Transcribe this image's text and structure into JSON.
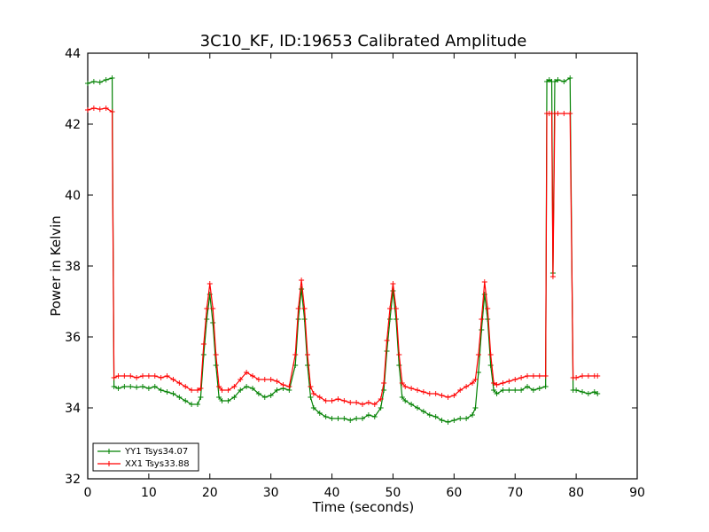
{
  "chart_data": {
    "type": "line",
    "title": "3C10_KF, ID:19653 Calibrated Amplitude",
    "xlabel": "Time (seconds)",
    "ylabel": "Power in Kelvin",
    "xlim": [
      0,
      90
    ],
    "ylim": [
      32,
      44
    ],
    "x_ticks": [
      0,
      10,
      20,
      30,
      40,
      50,
      60,
      70,
      80,
      90
    ],
    "y_ticks": [
      32,
      34,
      36,
      38,
      40,
      42,
      44
    ],
    "x_tick_labels": [
      "0",
      "10",
      "20",
      "30",
      "40",
      "50",
      "60",
      "70",
      "80",
      "90"
    ],
    "y_tick_labels": [
      "32",
      "34",
      "36",
      "38",
      "40",
      "42",
      "44"
    ],
    "grid": false,
    "legend_position": "bottom-left",
    "series": [
      {
        "name": "YY1 Tsys34.07",
        "color": "#008000",
        "marker": "+",
        "points": [
          [
            0,
            43.15
          ],
          [
            1,
            43.2
          ],
          [
            2,
            43.18
          ],
          [
            3,
            43.25
          ],
          [
            4,
            43.3
          ],
          [
            4.3,
            34.6
          ],
          [
            5,
            34.55
          ],
          [
            6,
            34.6
          ],
          [
            7,
            34.6
          ],
          [
            8,
            34.58
          ],
          [
            9,
            34.6
          ],
          [
            10,
            34.55
          ],
          [
            11,
            34.6
          ],
          [
            12,
            34.5
          ],
          [
            13,
            34.45
          ],
          [
            14,
            34.4
          ],
          [
            15,
            34.3
          ],
          [
            16,
            34.2
          ],
          [
            17,
            34.1
          ],
          [
            18,
            34.1
          ],
          [
            18.5,
            34.3
          ],
          [
            19,
            35.5
          ],
          [
            19.5,
            36.5
          ],
          [
            20,
            37.2
          ],
          [
            20.5,
            36.4
          ],
          [
            21,
            35.2
          ],
          [
            21.5,
            34.3
          ],
          [
            22,
            34.2
          ],
          [
            23,
            34.2
          ],
          [
            24,
            34.3
          ],
          [
            25,
            34.5
          ],
          [
            26,
            34.6
          ],
          [
            27,
            34.55
          ],
          [
            28,
            34.4
          ],
          [
            29,
            34.3
          ],
          [
            30,
            34.35
          ],
          [
            31,
            34.5
          ],
          [
            32,
            34.55
          ],
          [
            33,
            34.5
          ],
          [
            34,
            35.2
          ],
          [
            34.5,
            36.5
          ],
          [
            35,
            37.35
          ],
          [
            35.5,
            36.5
          ],
          [
            36,
            35.2
          ],
          [
            36.5,
            34.3
          ],
          [
            37,
            34.0
          ],
          [
            38,
            33.85
          ],
          [
            39,
            33.75
          ],
          [
            40,
            33.7
          ],
          [
            41,
            33.7
          ],
          [
            42,
            33.7
          ],
          [
            43,
            33.65
          ],
          [
            44,
            33.7
          ],
          [
            45,
            33.7
          ],
          [
            46,
            33.8
          ],
          [
            47,
            33.75
          ],
          [
            48,
            34.0
          ],
          [
            48.5,
            34.5
          ],
          [
            49,
            35.6
          ],
          [
            49.5,
            36.5
          ],
          [
            50,
            37.3
          ],
          [
            50.5,
            36.5
          ],
          [
            51,
            35.2
          ],
          [
            51.5,
            34.3
          ],
          [
            52,
            34.2
          ],
          [
            53,
            34.1
          ],
          [
            54,
            34.0
          ],
          [
            55,
            33.9
          ],
          [
            56,
            33.8
          ],
          [
            57,
            33.75
          ],
          [
            58,
            33.65
          ],
          [
            59,
            33.6
          ],
          [
            60,
            33.65
          ],
          [
            61,
            33.7
          ],
          [
            62,
            33.7
          ],
          [
            63,
            33.8
          ],
          [
            63.5,
            34.0
          ],
          [
            64,
            35.0
          ],
          [
            64.5,
            36.2
          ],
          [
            65,
            37.2
          ],
          [
            65.5,
            36.5
          ],
          [
            66,
            35.2
          ],
          [
            66.5,
            34.5
          ],
          [
            67,
            34.4
          ],
          [
            68,
            34.5
          ],
          [
            69,
            34.5
          ],
          [
            70,
            34.5
          ],
          [
            71,
            34.5
          ],
          [
            72,
            34.6
          ],
          [
            73,
            34.5
          ],
          [
            74,
            34.55
          ],
          [
            75,
            34.6
          ],
          [
            75.2,
            43.2
          ],
          [
            75.6,
            43.25
          ],
          [
            76,
            43.2
          ],
          [
            76.2,
            37.8
          ],
          [
            76.5,
            43.2
          ],
          [
            77,
            43.25
          ],
          [
            78,
            43.2
          ],
          [
            79,
            43.3
          ],
          [
            79.5,
            34.5
          ],
          [
            80,
            34.5
          ],
          [
            81,
            34.45
          ],
          [
            82,
            34.4
          ],
          [
            83,
            34.45
          ],
          [
            83.5,
            34.4
          ]
        ]
      },
      {
        "name": "XX1 Tsys33.88",
        "color": "#ff0000",
        "marker": "+",
        "points": [
          [
            0,
            42.4
          ],
          [
            1,
            42.45
          ],
          [
            2,
            42.42
          ],
          [
            3,
            42.45
          ],
          [
            4,
            42.35
          ],
          [
            4.3,
            34.85
          ],
          [
            5,
            34.9
          ],
          [
            6,
            34.9
          ],
          [
            7,
            34.9
          ],
          [
            8,
            34.85
          ],
          [
            9,
            34.9
          ],
          [
            10,
            34.9
          ],
          [
            11,
            34.9
          ],
          [
            12,
            34.85
          ],
          [
            13,
            34.9
          ],
          [
            14,
            34.8
          ],
          [
            15,
            34.7
          ],
          [
            16,
            34.6
          ],
          [
            17,
            34.5
          ],
          [
            18,
            34.5
          ],
          [
            18.5,
            34.55
          ],
          [
            19,
            35.8
          ],
          [
            19.5,
            36.8
          ],
          [
            20,
            37.5
          ],
          [
            20.5,
            36.8
          ],
          [
            21,
            35.5
          ],
          [
            21.5,
            34.6
          ],
          [
            22,
            34.5
          ],
          [
            23,
            34.5
          ],
          [
            24,
            34.6
          ],
          [
            25,
            34.8
          ],
          [
            26,
            35.0
          ],
          [
            27,
            34.9
          ],
          [
            28,
            34.8
          ],
          [
            29,
            34.8
          ],
          [
            30,
            34.8
          ],
          [
            31,
            34.75
          ],
          [
            32,
            34.65
          ],
          [
            33,
            34.6
          ],
          [
            34,
            35.5
          ],
          [
            34.5,
            36.8
          ],
          [
            35,
            37.6
          ],
          [
            35.5,
            36.8
          ],
          [
            36,
            35.5
          ],
          [
            36.5,
            34.6
          ],
          [
            37,
            34.4
          ],
          [
            38,
            34.3
          ],
          [
            39,
            34.2
          ],
          [
            40,
            34.2
          ],
          [
            41,
            34.25
          ],
          [
            42,
            34.2
          ],
          [
            43,
            34.15
          ],
          [
            44,
            34.15
          ],
          [
            45,
            34.1
          ],
          [
            46,
            34.15
          ],
          [
            47,
            34.1
          ],
          [
            48,
            34.25
          ],
          [
            48.5,
            34.7
          ],
          [
            49,
            35.9
          ],
          [
            49.5,
            36.8
          ],
          [
            50,
            37.5
          ],
          [
            50.5,
            36.8
          ],
          [
            51,
            35.5
          ],
          [
            51.5,
            34.7
          ],
          [
            52,
            34.6
          ],
          [
            53,
            34.55
          ],
          [
            54,
            34.5
          ],
          [
            55,
            34.45
          ],
          [
            56,
            34.4
          ],
          [
            57,
            34.4
          ],
          [
            58,
            34.35
          ],
          [
            59,
            34.3
          ],
          [
            60,
            34.35
          ],
          [
            61,
            34.5
          ],
          [
            62,
            34.6
          ],
          [
            63,
            34.7
          ],
          [
            63.5,
            34.8
          ],
          [
            64,
            35.5
          ],
          [
            64.5,
            36.5
          ],
          [
            65,
            37.55
          ],
          [
            65.5,
            36.8
          ],
          [
            66,
            35.5
          ],
          [
            66.5,
            34.7
          ],
          [
            67,
            34.65
          ],
          [
            68,
            34.7
          ],
          [
            69,
            34.75
          ],
          [
            70,
            34.8
          ],
          [
            71,
            34.85
          ],
          [
            72,
            34.9
          ],
          [
            73,
            34.9
          ],
          [
            74,
            34.9
          ],
          [
            75,
            34.9
          ],
          [
            75.2,
            42.3
          ],
          [
            75.6,
            42.3
          ],
          [
            76,
            42.3
          ],
          [
            76.2,
            37.7
          ],
          [
            76.5,
            42.3
          ],
          [
            77,
            42.3
          ],
          [
            78,
            42.3
          ],
          [
            79,
            42.3
          ],
          [
            79.5,
            34.85
          ],
          [
            80,
            34.85
          ],
          [
            81,
            34.9
          ],
          [
            82,
            34.9
          ],
          [
            83,
            34.9
          ],
          [
            83.5,
            34.9
          ]
        ]
      }
    ]
  }
}
